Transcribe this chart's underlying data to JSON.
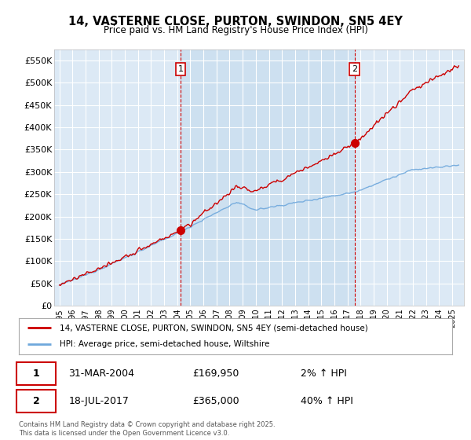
{
  "title": "14, VASTERNE CLOSE, PURTON, SWINDON, SN5 4EY",
  "subtitle": "Price paid vs. HM Land Registry's House Price Index (HPI)",
  "background_color": "#ffffff",
  "plot_bg_color": "#dce9f5",
  "plot_bg_between": "#cde0f0",
  "grid_color": "#ffffff",
  "ylim": [
    0,
    575000
  ],
  "yticks": [
    0,
    50000,
    100000,
    150000,
    200000,
    250000,
    300000,
    350000,
    400000,
    450000,
    500000,
    550000
  ],
  "ytick_labels": [
    "£0",
    "£50K",
    "£100K",
    "£150K",
    "£200K",
    "£250K",
    "£300K",
    "£350K",
    "£400K",
    "£450K",
    "£500K",
    "£550K"
  ],
  "sale1_year": 2004.25,
  "sale1_price": 169950,
  "sale2_year": 2017.54,
  "sale2_price": 365000,
  "line_color_property": "#cc0000",
  "line_color_hpi": "#6fa8dc",
  "legend_label_property": "14, VASTERNE CLOSE, PURTON, SWINDON, SN5 4EY (semi-detached house)",
  "legend_label_hpi": "HPI: Average price, semi-detached house, Wiltshire",
  "annotation1_date": "31-MAR-2004",
  "annotation1_price": "£169,950",
  "annotation1_hpi": "2% ↑ HPI",
  "annotation2_date": "18-JUL-2017",
  "annotation2_price": "£365,000",
  "annotation2_hpi": "40% ↑ HPI",
  "footer": "Contains HM Land Registry data © Crown copyright and database right 2025.\nThis data is licensed under the Open Government Licence v3.0.",
  "xlim_left": 1994.6,
  "xlim_right": 2025.9
}
